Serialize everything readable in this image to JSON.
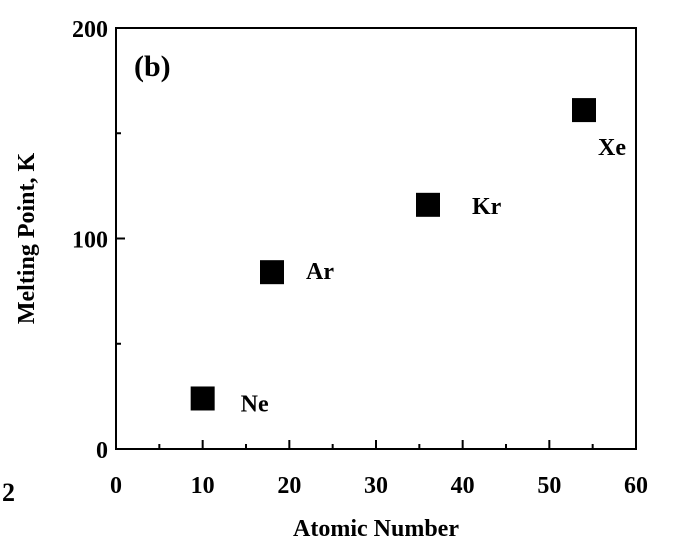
{
  "chart_data": {
    "type": "scatter",
    "panel_label": "(b)",
    "xlabel": "Atomic Number",
    "ylabel": "Melting Point, K",
    "xlim": [
      0,
      60
    ],
    "ylim": [
      0,
      200
    ],
    "x_ticks": [
      0,
      10,
      20,
      30,
      40,
      50,
      60
    ],
    "y_ticks": [
      0,
      100,
      200
    ],
    "grid": false,
    "marker": "square",
    "marker_color": "#000000",
    "points": [
      {
        "label": "Ne",
        "x": 10,
        "y": 24
      },
      {
        "label": "Ar",
        "x": 18,
        "y": 84
      },
      {
        "label": "Kr",
        "x": 36,
        "y": 116
      },
      {
        "label": "Xe",
        "x": 54,
        "y": 161
      }
    ]
  },
  "stray_mark": "2"
}
